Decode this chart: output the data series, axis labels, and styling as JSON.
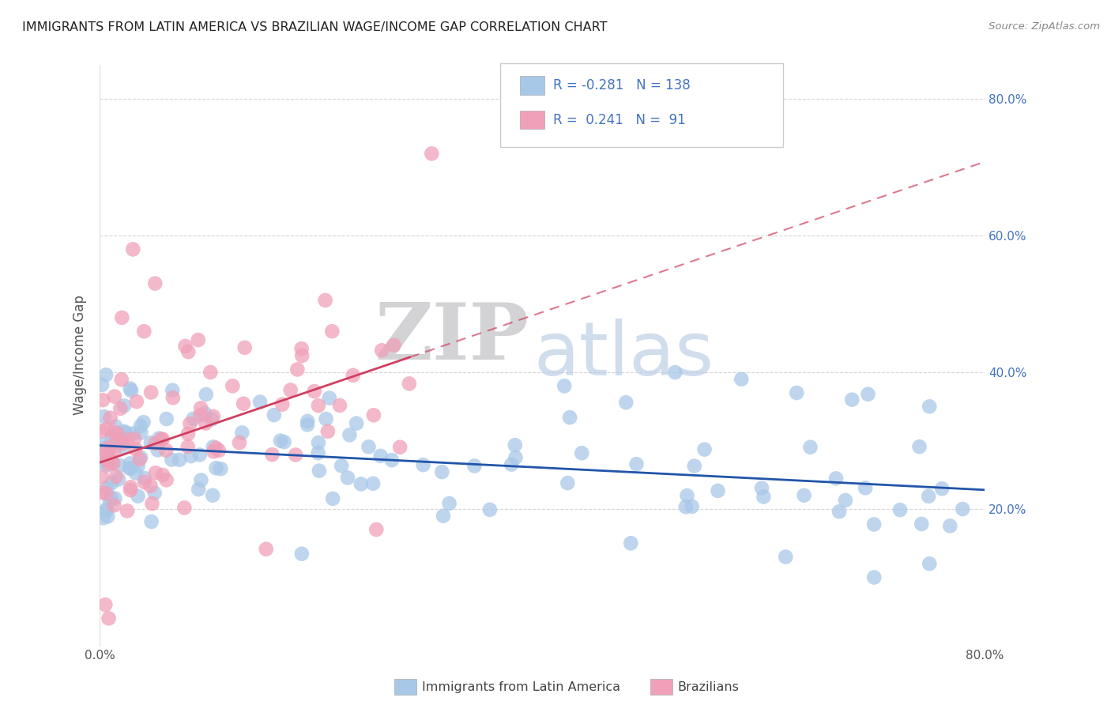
{
  "title": "IMMIGRANTS FROM LATIN AMERICA VS BRAZILIAN WAGE/INCOME GAP CORRELATION CHART",
  "source": "Source: ZipAtlas.com",
  "ylabel": "Wage/Income Gap",
  "series1_name": "Immigrants from Latin America",
  "series1_color": "#a8c8e8",
  "series1_line_color": "#2255aa",
  "series2_name": "Brazilians",
  "series2_color": "#f0a0b8",
  "series2_line_color": "#d04060",
  "series1_R": -0.281,
  "series1_N": 138,
  "series2_R": 0.241,
  "series2_N": 91,
  "xlim": [
    0.0,
    0.8
  ],
  "ylim": [
    0.0,
    0.85
  ],
  "right_yticks": [
    0.2,
    0.4,
    0.6,
    0.8
  ],
  "right_yticklabels": [
    "20.0%",
    "40.0%",
    "60.0%",
    "80.0%"
  ],
  "legend_color": "#4472c4",
  "watermark_zip": "ZIP",
  "watermark_atlas": "atlas",
  "watermark_zip_color": "#c8c8cc",
  "watermark_atlas_color": "#b8cce4"
}
